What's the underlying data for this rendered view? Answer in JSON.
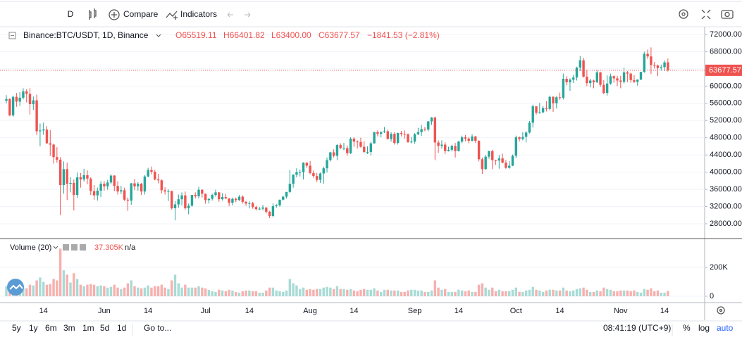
{
  "toolbar": {
    "interval": "D",
    "compare": "Compare",
    "indicators": "Indicators"
  },
  "chart_data": {
    "type": "candlestick",
    "symbol": "Binance:BTC/USDT, 1D, Binance",
    "legend": {
      "open": "O65519.11",
      "high": "H66401.82",
      "low": "L63400.00",
      "close": "C63677.57",
      "change": "−1841.53 (−2.81%)"
    },
    "up_color": "#26a69a",
    "down_color": "#ef5350",
    "up_volume_color": "#a8dbd5",
    "down_volume_color": "#f7b0ae",
    "x": [
      null,
      null,
      null,
      null,
      null,
      null,
      null,
      null,
      null,
      null,
      null,
      "14",
      null,
      null,
      null,
      null,
      null,
      null,
      null,
      null,
      null,
      null,
      null,
      null,
      null,
      null,
      null,
      null,
      null,
      "Jun",
      null,
      null,
      null,
      null,
      null,
      null,
      null,
      null,
      null,
      null,
      null,
      null,
      "14",
      null,
      null,
      null,
      null,
      null,
      null,
      null,
      null,
      null,
      null,
      null,
      null,
      null,
      null,
      null,
      null,
      "Jul",
      null,
      null,
      null,
      null,
      null,
      null,
      null,
      null,
      null,
      null,
      null,
      null,
      "14",
      null,
      null,
      null,
      null,
      null,
      null,
      null,
      null,
      null,
      null,
      null,
      null,
      null,
      null,
      null,
      null,
      null,
      "Aug",
      null,
      null,
      null,
      null,
      null,
      null,
      null,
      null,
      null,
      null,
      null,
      null,
      "14",
      null,
      null,
      null,
      null,
      null,
      null,
      null,
      null,
      null,
      null,
      null,
      null,
      null,
      null,
      null,
      null,
      null,
      "Sep",
      null,
      null,
      null,
      null,
      null,
      null,
      null,
      null,
      null,
      null,
      null,
      null,
      "14",
      null,
      null,
      null,
      null,
      null,
      null,
      null,
      null,
      null,
      null,
      null,
      null,
      null,
      null,
      null,
      null,
      "Oct",
      null,
      null,
      null,
      null,
      null,
      null,
      null,
      null,
      null,
      null,
      null,
      null,
      "14",
      null,
      null,
      null,
      null,
      null,
      null,
      null,
      null,
      null,
      null,
      null,
      null,
      null,
      null,
      null,
      null,
      null,
      "Nov",
      null,
      null,
      null,
      null,
      null,
      null,
      null,
      null,
      null,
      null,
      null,
      null,
      "14",
      null
    ],
    "open": [
      56600,
      57000,
      53200,
      57500,
      56400,
      57300,
      58800,
      58200,
      55800,
      56700,
      49500,
      49700,
      49900,
      46700,
      46400,
      43500,
      42900,
      37000,
      40700,
      37300,
      37500,
      34700,
      38800,
      38300,
      39300,
      38500,
      35600,
      34600,
      35700,
      37300,
      36700,
      37600,
      39200,
      36800,
      35500,
      35800,
      33600,
      33400,
      37400,
      36700,
      37300,
      35500,
      39000,
      40500,
      40100,
      38300,
      38100,
      35800,
      35500,
      35600,
      31600,
      32500,
      33700,
      34600,
      31600,
      32200,
      34700,
      34400,
      35900,
      35000,
      33500,
      33800,
      34700,
      35300,
      33700,
      34200,
      33900,
      32900,
      33800,
      33500,
      34300,
      33100,
      32700,
      32800,
      31900,
      31400,
      31500,
      31800,
      30800,
      29800,
      32100,
      32300,
      33600,
      34300,
      35400,
      37300,
      39400,
      40000,
      40000,
      42200,
      41500,
      39800,
      39100,
      38200,
      39700,
      40900,
      42800,
      44600,
      43800,
      46300,
      45600,
      45600,
      44400,
      47800,
      47100,
      47000,
      45900,
      44700,
      44700,
      46700,
      49300,
      48900,
      49300,
      49500,
      47700,
      48900,
      46800,
      49100,
      48900,
      48800,
      47000,
      47100,
      48800,
      49300,
      50000,
      49900,
      51800,
      52700,
      46900,
      46100,
      46400,
      44900,
      45200,
      46100,
      44900,
      47100,
      48100,
      47800,
      47300,
      48300,
      47300,
      43000,
      40700,
      43600,
      44900,
      42800,
      42700,
      43200,
      42200,
      41000,
      41500,
      43800,
      48100,
      47700,
      48200,
      49200,
      51500,
      55300,
      53800,
      53900,
      54900,
      54700,
      57500,
      56000,
      57400,
      57300,
      61700,
      60900,
      61500,
      62000,
      64300,
      66000,
      62200,
      60700,
      61300,
      60900,
      63200,
      60300,
      58400,
      60600,
      62300,
      61800,
      61300,
      61000,
      63200,
      62900,
      61400,
      61000,
      61500,
      63300,
      67500,
      66900,
      64900,
      64800,
      64200,
      64400,
      65519.11
    ],
    "high": [
      57900,
      57200,
      57800,
      58400,
      58600,
      59500,
      59300,
      59500,
      57600,
      58000,
      51300,
      51500,
      50700,
      49800,
      46600,
      45800,
      43500,
      42500,
      42200,
      38800,
      38300,
      39900,
      39800,
      40800,
      40400,
      38800,
      37000,
      36400,
      37900,
      37900,
      38200,
      39500,
      39300,
      37900,
      36800,
      36400,
      34100,
      37500,
      38400,
      37700,
      37500,
      39300,
      41000,
      41300,
      40500,
      39600,
      38300,
      36500,
      36000,
      35700,
      33300,
      34800,
      35300,
      35500,
      32700,
      34700,
      35300,
      36600,
      36000,
      35000,
      33900,
      35000,
      35900,
      35400,
      35100,
      35000,
      34000,
      34100,
      34100,
      34700,
      34600,
      33300,
      33200,
      33100,
      32200,
      31900,
      32400,
      31800,
      31000,
      32800,
      32600,
      33600,
      34500,
      35400,
      40500,
      39500,
      40900,
      40600,
      42300,
      42300,
      42600,
      40400,
      39800,
      39900,
      41300,
      43400,
      44700,
      45300,
      46500,
      46700,
      46800,
      46200,
      48100,
      48100,
      47400,
      48000,
      47200,
      46000,
      47100,
      49400,
      49700,
      49500,
      50500,
      49900,
      49300,
      49300,
      49200,
      49600,
      49700,
      49000,
      48200,
      49100,
      50300,
      51000,
      50500,
      51900,
      52800,
      52900,
      47400,
      47400,
      47000,
      45900,
      46400,
      46800,
      47300,
      48500,
      48600,
      48200,
      48800,
      48400,
      47400,
      43400,
      44000,
      45000,
      45200,
      42900,
      44000,
      44300,
      42800,
      42600,
      44100,
      48500,
      48300,
      49300,
      49500,
      51900,
      55700,
      55300,
      56100,
      55400,
      56500,
      57800,
      57700,
      57700,
      58500,
      62900,
      62300,
      61800,
      62600,
      64500,
      67000,
      66600,
      63800,
      61700,
      61500,
      63700,
      63300,
      61400,
      62500,
      62900,
      62500,
      62400,
      62400,
      64300,
      63500,
      63100,
      62500,
      61600,
      63300,
      68000,
      68500,
      69000,
      65600,
      65000,
      65000,
      66000,
      66401.82
    ],
    "low": [
      56000,
      53000,
      52900,
      55200,
      55400,
      56900,
      56200,
      53400,
      54500,
      48600,
      46000,
      48700,
      46600,
      43800,
      42000,
      42200,
      30000,
      35000,
      33500,
      35300,
      31100,
      34000,
      36400,
      37800,
      37200,
      34700,
      33600,
      33400,
      34200,
      35700,
      35900,
      37200,
      35600,
      34800,
      34900,
      33300,
      31000,
      32400,
      35800,
      35700,
      34700,
      34800,
      38800,
      39500,
      38100,
      37400,
      35100,
      34800,
      33300,
      31300,
      28800,
      31700,
      32300,
      31300,
      30200,
      32000,
      33900,
      33900,
      34100,
      32700,
      32700,
      33400,
      34300,
      33100,
      33400,
      33700,
      32100,
      32300,
      33000,
      33300,
      32700,
      32200,
      31600,
      31500,
      31100,
      31200,
      31100,
      30400,
      29300,
      29500,
      31700,
      32000,
      33400,
      33900,
      35200,
      36400,
      38800,
      39000,
      38300,
      41000,
      39500,
      38700,
      37700,
      37500,
      37300,
      39900,
      42500,
      43400,
      42800,
      45300,
      45100,
      43800,
      44200,
      45900,
      45500,
      45700,
      44400,
      44200,
      43900,
      46600,
      48300,
      48100,
      49100,
      47600,
      47100,
      46400,
      46400,
      48300,
      47800,
      46800,
      46700,
      46600,
      48600,
      48400,
      49500,
      49500,
      51000,
      42800,
      44500,
      45500,
      44200,
      44800,
      44800,
      43400,
      44800,
      46700,
      47200,
      46700,
      47100,
      46800,
      42500,
      39600,
      40600,
      43100,
      40700,
      41700,
      40800,
      42100,
      40800,
      40800,
      41400,
      43300,
      47100,
      47400,
      46900,
      49000,
      50400,
      53400,
      53600,
      53700,
      54100,
      54400,
      54000,
      54800,
      56800,
      56900,
      60200,
      58900,
      60700,
      61300,
      63500,
      62000,
      60000,
      59700,
      59500,
      60700,
      59800,
      58100,
      57800,
      60300,
      60800,
      60000,
      59500,
      60600,
      60900,
      60800,
      60700,
      60100,
      61400,
      63100,
      66300,
      62800,
      64100,
      62300,
      63600,
      63500,
      63400
    ],
    "close": [
      57000,
      53200,
      57500,
      56400,
      57300,
      58800,
      58200,
      55800,
      56700,
      49500,
      49700,
      49900,
      46700,
      46400,
      43500,
      42900,
      37000,
      40700,
      37300,
      37500,
      34700,
      38800,
      38300,
      39300,
      38500,
      35600,
      34600,
      35700,
      37300,
      36700,
      37600,
      39200,
      36800,
      35500,
      35800,
      33600,
      33400,
      37400,
      36700,
      37300,
      35500,
      39000,
      40500,
      40100,
      38300,
      38100,
      35800,
      35500,
      35600,
      31600,
      32500,
      33700,
      34600,
      31600,
      32200,
      34700,
      34400,
      35900,
      35000,
      33500,
      33800,
      34700,
      35300,
      33700,
      34200,
      33900,
      32900,
      33800,
      33500,
      34300,
      33100,
      32700,
      32800,
      31900,
      31400,
      31500,
      31800,
      30800,
      29800,
      32100,
      32300,
      33600,
      34300,
      35400,
      37300,
      39400,
      40000,
      40000,
      42200,
      41500,
      39800,
      39100,
      38200,
      39700,
      40900,
      42800,
      44600,
      43800,
      46300,
      45600,
      45600,
      44400,
      47800,
      47100,
      47000,
      45900,
      44700,
      44700,
      46700,
      49300,
      48900,
      49300,
      49500,
      47700,
      48900,
      46800,
      49100,
      48900,
      48800,
      47000,
      47100,
      48800,
      49300,
      50000,
      49900,
      51800,
      52700,
      46900,
      46100,
      46400,
      44900,
      45200,
      46100,
      44900,
      47100,
      48100,
      47800,
      47300,
      48300,
      47300,
      43000,
      40700,
      43600,
      44900,
      42800,
      42700,
      43200,
      42200,
      41000,
      41500,
      43800,
      48100,
      47700,
      48200,
      49200,
      51500,
      55300,
      53800,
      53900,
      54900,
      54700,
      57500,
      56000,
      57400,
      57300,
      61700,
      60900,
      61500,
      62000,
      64300,
      66000,
      62200,
      60700,
      61300,
      60900,
      63200,
      60300,
      58400,
      60600,
      62300,
      61800,
      61300,
      61000,
      63200,
      62900,
      61400,
      61000,
      61500,
      63300,
      67500,
      66900,
      64900,
      64800,
      64200,
      64400,
      65519.11,
      63677.57
    ],
    "ylim": [
      24730,
      73800
    ],
    "yticks": [
      {
        "value": 28000,
        "label": "28000.00"
      },
      {
        "value": 32000,
        "label": "32000.00"
      },
      {
        "value": 36000,
        "label": "36000.00"
      },
      {
        "value": 40000,
        "label": "40000.00"
      },
      {
        "value": 44000,
        "label": "44000.00"
      },
      {
        "value": 48000,
        "label": "48000.00"
      },
      {
        "value": 52000,
        "label": "52000.00"
      },
      {
        "value": 56000,
        "label": "56000.00"
      },
      {
        "value": 60000,
        "label": "60000.00"
      },
      {
        "value": 64000,
        "label": "64000.00"
      },
      {
        "value": 68000,
        "label": "68000.00"
      },
      {
        "value": 72000,
        "label": "72000.00"
      }
    ],
    "grid": true,
    "volume": {
      "title": "Volume (20)",
      "last": "37.305K",
      "extra": "n/a",
      "values": [
        70000,
        85000,
        80000,
        70000,
        65000,
        60000,
        55000,
        80000,
        75000,
        110000,
        130000,
        100000,
        80000,
        85000,
        120000,
        110000,
        330000,
        180000,
        150000,
        95000,
        160000,
        120000,
        80000,
        70000,
        80000,
        85000,
        80000,
        70000,
        75000,
        70000,
        60000,
        65000,
        80000,
        60000,
        50000,
        60000,
        90000,
        110000,
        70000,
        60000,
        55000,
        60000,
        75000,
        60000,
        70000,
        70000,
        80000,
        60000,
        50000,
        110000,
        150000,
        90000,
        60000,
        80000,
        60000,
        60000,
        60000,
        70000,
        60000,
        55000,
        45000,
        35000,
        30000,
        45000,
        40000,
        35000,
        45000,
        40000,
        30000,
        25000,
        35000,
        40000,
        40000,
        35000,
        35000,
        25000,
        25000,
        40000,
        60000,
        60000,
        40000,
        35000,
        30000,
        40000,
        120000,
        90000,
        75000,
        50000,
        60000,
        45000,
        50000,
        45000,
        50000,
        50000,
        60000,
        65000,
        60000,
        50000,
        70000,
        50000,
        50000,
        45000,
        50000,
        40000,
        35000,
        45000,
        50000,
        45000,
        45000,
        55000,
        40000,
        30000,
        45000,
        45000,
        40000,
        40000,
        40000,
        30000,
        30000,
        40000,
        45000,
        45000,
        40000,
        40000,
        30000,
        30000,
        40000,
        110000,
        60000,
        45000,
        50000,
        30000,
        30000,
        30000,
        45000,
        40000,
        35000,
        40000,
        30000,
        30000,
        80000,
        90000,
        60000,
        45000,
        60000,
        35000,
        45000,
        35000,
        35000,
        35000,
        45000,
        60000,
        30000,
        30000,
        40000,
        45000,
        65000,
        45000,
        40000,
        30000,
        40000,
        45000,
        45000,
        40000,
        40000,
        60000,
        40000,
        35000,
        40000,
        50000,
        55000,
        60000,
        45000,
        30000,
        30000,
        40000,
        35000,
        60000,
        50000,
        45000,
        35000,
        35000,
        40000,
        40000,
        40000,
        35000,
        40000,
        30000,
        25000,
        50000,
        45000,
        55000,
        35000,
        40000,
        25000,
        25000,
        37305
      ],
      "ylim": [
        -43900,
        385400
      ],
      "yticks": [
        0,
        {
          "value": 200000,
          "label": "200K"
        }
      ]
    }
  },
  "bottom_bar": {
    "ranges": [
      "5y",
      "1y",
      "6m",
      "3m",
      "1m",
      "5d",
      "1d"
    ],
    "goto": "Go to...",
    "clock": "08:41:19 (UTC+9)",
    "percent": "%",
    "log": "log",
    "auto": "auto"
  }
}
